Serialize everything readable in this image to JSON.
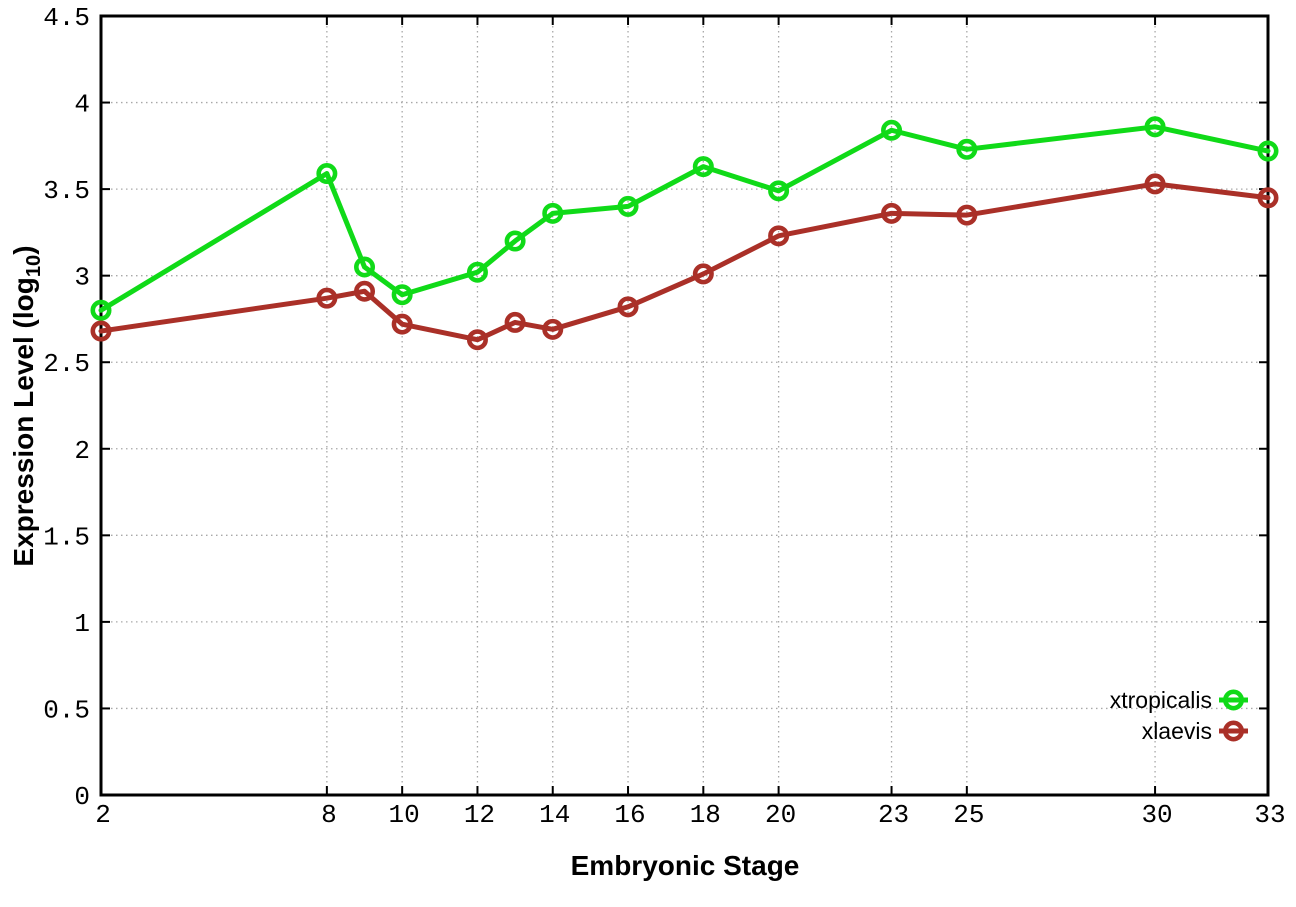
{
  "chart_data": {
    "type": "line",
    "title": "",
    "xlabel": "Embryonic Stage",
    "ylabel": {
      "pre": "Expression Level (log",
      "sub": "10",
      "post": ")"
    },
    "xlim": [
      2,
      33
    ],
    "ylim": [
      0,
      4.5
    ],
    "x_ticks": [
      2,
      8,
      10,
      12,
      14,
      16,
      18,
      20,
      23,
      25,
      30,
      33
    ],
    "x_tick_labels": [
      "2",
      "8",
      "10",
      "12",
      "14",
      "16",
      "18",
      "20",
      "23",
      "25",
      "30",
      "33"
    ],
    "y_ticks": [
      0,
      0.5,
      1,
      1.5,
      2,
      2.5,
      3,
      3.5,
      4,
      4.5
    ],
    "y_tick_labels": [
      "0",
      "0.5",
      "1",
      "1.5",
      "2",
      "2.5",
      "3",
      "3.5",
      "4",
      "4.5"
    ],
    "grid": true,
    "legend_position": "inside-right-bottom",
    "marker": "open-circle",
    "x": [
      2,
      8,
      9,
      10,
      12,
      13,
      14,
      16,
      18,
      20,
      23,
      25,
      30,
      33
    ],
    "series": [
      {
        "name": "xtropicalis",
        "color": "#10da18",
        "values": [
          2.8,
          3.59,
          3.05,
          2.89,
          3.02,
          3.2,
          3.36,
          3.4,
          3.63,
          3.49,
          3.84,
          3.73,
          3.86,
          3.72
        ]
      },
      {
        "name": "xlaevis",
        "color": "#aa3028",
        "values": [
          2.68,
          2.87,
          2.91,
          2.72,
          2.63,
          2.73,
          2.69,
          2.82,
          3.01,
          3.23,
          3.36,
          3.35,
          3.53,
          3.45
        ]
      }
    ],
    "colors": {
      "border": "#000000",
      "grid": "#a8a8a8",
      "text": "#000000",
      "background": "#ffffff"
    }
  }
}
